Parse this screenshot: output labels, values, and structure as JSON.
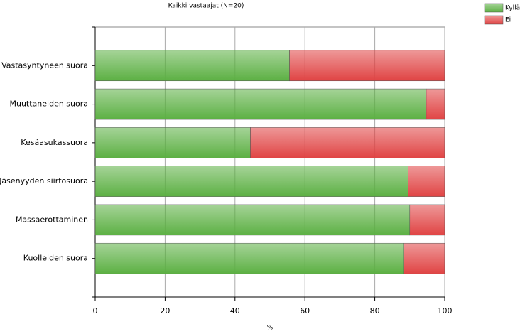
{
  "chart_data": {
    "type": "stacked-barh",
    "title": "Kaikki vastaajat (N=20)",
    "x_label": "%",
    "categories": [
      "Vastasyntyneen suora",
      "Muuttaneiden suora",
      "Kesäasukassuora",
      "Jäsenyyden siirtosuora",
      "Massaerottaminen",
      "Kuolleiden suora"
    ],
    "series": [
      {
        "name": "Kyllä",
        "color": "#5cb043",
        "values": [
          55.6,
          94.7,
          44.4,
          89.5,
          90,
          88.2
        ]
      },
      {
        "name": "Ei",
        "color": "#e04444",
        "values": [
          44.4,
          5.3,
          55.6,
          10.5,
          10,
          11.8
        ]
      }
    ],
    "xlim": [
      0,
      100
    ],
    "xticks": [
      0,
      20,
      40,
      60,
      80,
      100
    ],
    "grid": true,
    "legend": "top-right"
  }
}
